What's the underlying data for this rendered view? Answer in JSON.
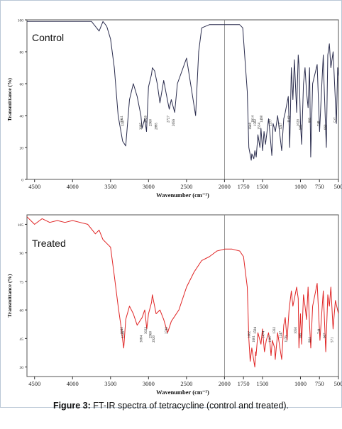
{
  "caption": {
    "label": "Figure 3:",
    "text": " FT-IR spectra of tetracycline (control and treated)."
  },
  "chart_data": [
    {
      "type": "line",
      "title": "Control",
      "xlabel": "Wavenumber (cm⁻¹)",
      "ylabel": "Transmittance (%)",
      "xlim": [
        4600,
        500
      ],
      "x_reversed": true,
      "x_ticks": [
        4500,
        4000,
        3500,
        3000,
        2500,
        2000,
        1750,
        1500,
        1000,
        750,
        500
      ],
      "ylim": [
        0,
        100
      ],
      "y_ticks": [
        0,
        20,
        40,
        60,
        80,
        100
      ],
      "grid": false,
      "color": "#2b2d4e",
      "series": [
        {
          "x": [
            4600,
            3750,
            3650,
            3600,
            3550,
            3500,
            3450,
            3400,
            3341,
            3300,
            3250,
            3200,
            3150,
            3100,
            3085,
            3050,
            3026,
            3000,
            2960,
            2950,
            2920,
            2885,
            2850,
            2800,
            2760,
            2727,
            2700,
            2656,
            2620,
            2500,
            2380,
            2340,
            2300,
            2200,
            2000,
            1800,
            1760,
            1700,
            1680,
            1648,
            1640,
            1614,
            1600,
            1582,
            1560,
            1534,
            1520,
            1498,
            1480,
            1460,
            1420,
            1400,
            1377,
            1360,
            1330,
            1300,
            1247,
            1220,
            1200,
            1160,
            1142,
            1120,
            1100,
            1080,
            1050,
            1030,
            1020,
            1000,
            985,
            960,
            940,
            920,
            900,
            880,
            865,
            840,
            800,
            780,
            748,
            720,
            700,
            690,
            660,
            640,
            620,
            600,
            570,
            527,
            510,
            500
          ],
          "y": [
            99,
            99,
            93,
            99,
            96,
            88,
            70,
            40,
            24,
            21,
            50,
            60,
            52,
            40,
            32,
            38,
            30,
            58,
            66,
            70,
            68,
            60,
            48,
            62,
            52,
            44,
            50,
            42,
            60,
            76,
            40,
            80,
            95,
            97,
            97,
            97,
            95,
            55,
            20,
            12,
            16,
            13,
            18,
            14,
            28,
            20,
            32,
            18,
            30,
            22,
            38,
            28,
            15,
            35,
            30,
            40,
            18,
            38,
            42,
            52,
            20,
            70,
            50,
            75,
            42,
            78,
            72,
            35,
            22,
            60,
            70,
            55,
            45,
            70,
            14,
            60,
            68,
            72,
            30,
            58,
            78,
            60,
            20,
            78,
            85,
            70,
            80,
            35,
            70,
            65
          ]
        }
      ],
      "peak_labels": [
        "3341",
        "3327",
        "3085",
        "3026",
        "2960",
        "2885",
        "2727",
        "2656",
        "1648",
        "1614",
        "1582",
        "1534",
        "1498",
        "1377",
        "1247",
        "1142",
        "1020",
        "985",
        "865",
        "748",
        "660",
        "527"
      ]
    },
    {
      "type": "line",
      "title": "Treated",
      "xlabel": "Wavenumber (cm⁻¹)",
      "ylabel": "Transmittance (%)",
      "xlim": [
        4600,
        500
      ],
      "x_reversed": true,
      "x_ticks": [
        4500,
        4000,
        3500,
        3000,
        2500,
        2000,
        1750,
        1500,
        1000,
        750,
        500
      ],
      "ylim": [
        25,
        110
      ],
      "y_ticks": [
        30,
        45,
        60,
        75,
        90,
        105
      ],
      "grid": false,
      "color": "#e02424",
      "series": [
        {
          "x": [
            4600,
            4500,
            4400,
            4300,
            4200,
            4100,
            4000,
            3900,
            3800,
            3700,
            3650,
            3600,
            3550,
            3500,
            3450,
            3400,
            3350,
            3340,
            3326,
            3300,
            3250,
            3200,
            3150,
            3084,
            3050,
            3023,
            3000,
            2960,
            2950,
            2920,
            2900,
            2850,
            2800,
            2749,
            2700,
            2600,
            2500,
            2400,
            2300,
            2200,
            2100,
            2000,
            1900,
            1800,
            1750,
            1700,
            1680,
            1662,
            1640,
            1601,
            1590,
            1584,
            1560,
            1520,
            1500,
            1474,
            1450,
            1420,
            1400,
            1387,
            1370,
            1340,
            1332,
            1300,
            1247,
            1220,
            1200,
            1176,
            1150,
            1120,
            1100,
            1050,
            1030,
            1020,
            1000,
            985,
            960,
            940,
            920,
            900,
            880,
            864,
            840,
            800,
            780,
            744,
            720,
            700,
            690,
            667,
            640,
            620,
            600,
            571,
            540,
            500
          ],
          "y": [
            109,
            105,
            108,
            106,
            107,
            106,
            107,
            106,
            105,
            100,
            102,
            97,
            95,
            93,
            78,
            62,
            48,
            44,
            40,
            55,
            62,
            58,
            52,
            56,
            60,
            50,
            58,
            64,
            68,
            62,
            58,
            60,
            55,
            48,
            54,
            60,
            72,
            80,
            86,
            88,
            91,
            92,
            92,
            91,
            88,
            72,
            45,
            33,
            40,
            30,
            38,
            36,
            48,
            42,
            50,
            38,
            44,
            48,
            42,
            36,
            44,
            40,
            34,
            48,
            34,
            52,
            56,
            44,
            60,
            70,
            62,
            72,
            66,
            40,
            58,
            42,
            68,
            62,
            55,
            72,
            52,
            40,
            62,
            70,
            74,
            44,
            58,
            70,
            60,
            38,
            68,
            62,
            72,
            50,
            65,
            58
          ]
        }
      ],
      "peak_labels": [
        "3340",
        "3326",
        "3084",
        "3023",
        "2960",
        "2920",
        "2749",
        "1662",
        "1601",
        "1584",
        "1474",
        "1387",
        "1332",
        "1247",
        "1176",
        "1050",
        "985",
        "864",
        "744",
        "667",
        "571"
      ]
    }
  ]
}
